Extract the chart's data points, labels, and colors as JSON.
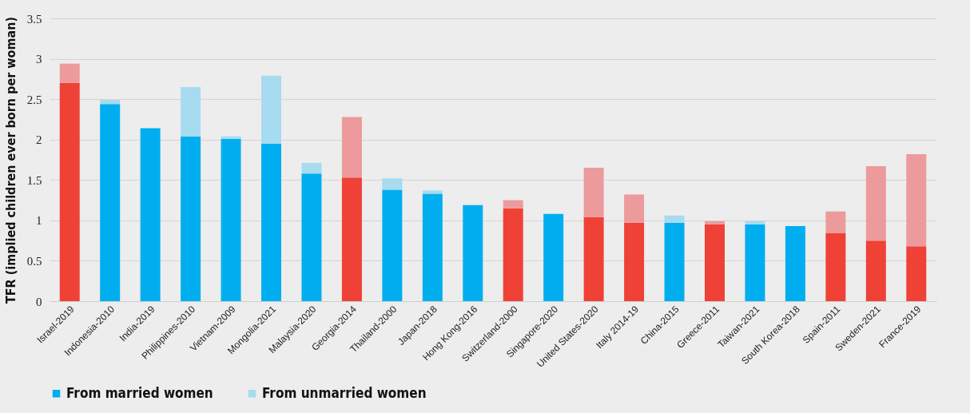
{
  "chart_data": {
    "type": "bar",
    "stacked": true,
    "ylabel": "TFR (implied children ever born per woman)",
    "categories": [
      "Israel-2019",
      "Indonesia-2010",
      "India-2019",
      "Philippines-2010",
      "Vietnam-2009",
      "Mongolia-2021",
      "Malaysia-2020",
      "Georgia-2014",
      "Thailand-2000",
      "Japan-2018",
      "Hong Kong-2016",
      "Switzerland-2000",
      "Singapore-2020",
      "United States-2020",
      "Italy 2014-19",
      "China-2015",
      "Greece-2011",
      "Taiwan-2021",
      "South Korea-2018",
      "Spain-2011",
      "Sweden-2021",
      "France-2019"
    ],
    "series": [
      {
        "name": "From married women",
        "color": "#00aeef",
        "colors": [
          "#ef4136",
          "#00aeef",
          "#00aeef",
          "#00aeef",
          "#00aeef",
          "#00aeef",
          "#00aeef",
          "#ef4136",
          "#00aeef",
          "#00aeef",
          "#00aeef",
          "#ef4136",
          "#00aeef",
          "#ef4136",
          "#ef4136",
          "#00aeef",
          "#ef4136",
          "#00aeef",
          "#00aeef",
          "#ef4136",
          "#ef4136",
          "#ef4136"
        ],
        "values": [
          2.7,
          2.44,
          2.14,
          2.04,
          2.01,
          1.95,
          1.58,
          1.53,
          1.38,
          1.33,
          1.19,
          1.15,
          1.08,
          1.04,
          0.97,
          0.97,
          0.95,
          0.95,
          0.93,
          0.84,
          0.75,
          0.68
        ]
      },
      {
        "name": "From unmarried women",
        "color": "#a6dbf0",
        "colors": [
          "#ed9a9c",
          "#a6dbf0",
          "#a6dbf0",
          "#a6dbf0",
          "#a6dbf0",
          "#a6dbf0",
          "#a6dbf0",
          "#ed9a9c",
          "#a6dbf0",
          "#a6dbf0",
          null,
          "#ed9a9c",
          "#a6dbf0",
          "#ed9a9c",
          "#ed9a9c",
          "#a6dbf0",
          "#ed9a9c",
          "#a6dbf0",
          "#a6dbf0",
          "#ed9a9c",
          "#ed9a9c",
          "#ed9a9c"
        ],
        "values": [
          0.24,
          0.05,
          0,
          0.61,
          0.03,
          0.84,
          0.13,
          0.75,
          0.14,
          0.04,
          null,
          0.1,
          0,
          0.61,
          0.35,
          0.09,
          0.04,
          0.04,
          0,
          0.27,
          0.92,
          1.14
        ]
      }
    ],
    "ylim": [
      0,
      3.5
    ],
    "yticks": [
      0,
      0.5,
      1,
      1.5,
      2,
      2.5,
      3,
      3.5
    ],
    "grid": "y",
    "legend": "bottom"
  }
}
